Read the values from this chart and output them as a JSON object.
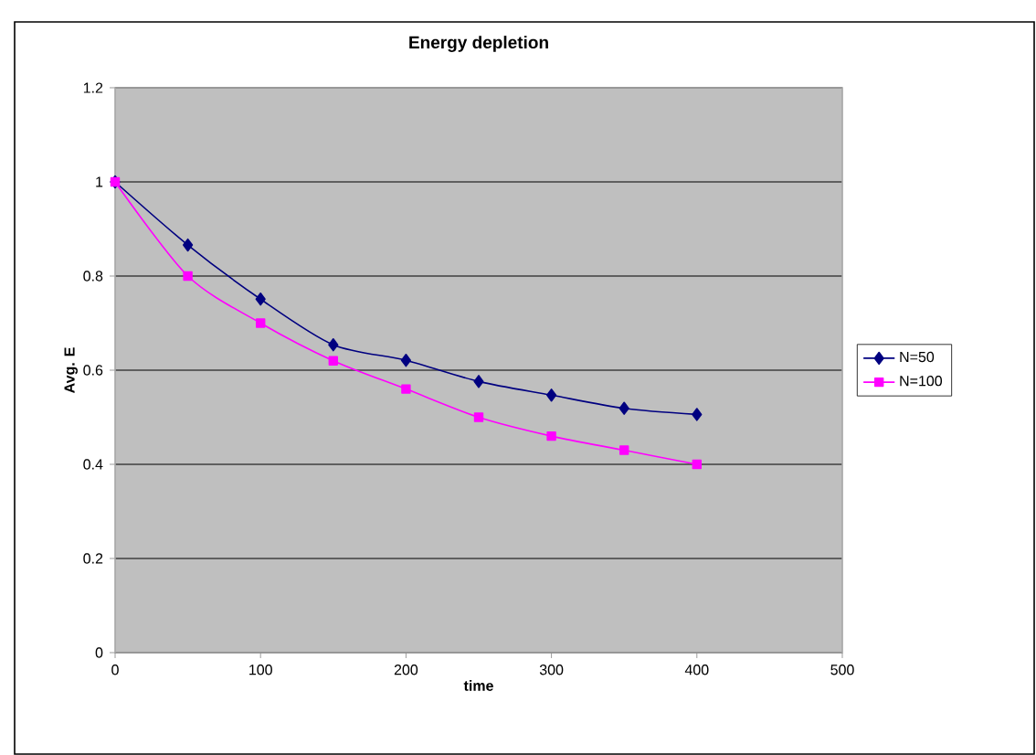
{
  "chart_data": {
    "type": "line",
    "title": "Energy depletion",
    "xlabel": "time",
    "ylabel": "Avg. E",
    "x": [
      0,
      50,
      100,
      150,
      200,
      250,
      300,
      350,
      400
    ],
    "series": [
      {
        "name": "N=50",
        "color": "#000080",
        "marker": "diamond",
        "values": [
          1,
          0.866,
          0.751,
          0.654,
          0.621,
          0.576,
          0.547,
          0.519,
          0.506
        ]
      },
      {
        "name": "N=100",
        "color": "#ff00ff",
        "marker": "square",
        "values": [
          1,
          0.8,
          0.7,
          0.62,
          0.56,
          0.5,
          0.46,
          0.43,
          0.4
        ]
      }
    ],
    "xlim": [
      0,
      500
    ],
    "xticks": [
      0,
      100,
      200,
      300,
      400,
      500
    ],
    "ylim": [
      0,
      1.2
    ],
    "yticks": [
      0,
      0.2,
      0.4,
      0.6,
      0.8,
      1,
      1.2
    ],
    "grid": "y",
    "legend": "right",
    "line_style": "solid"
  }
}
